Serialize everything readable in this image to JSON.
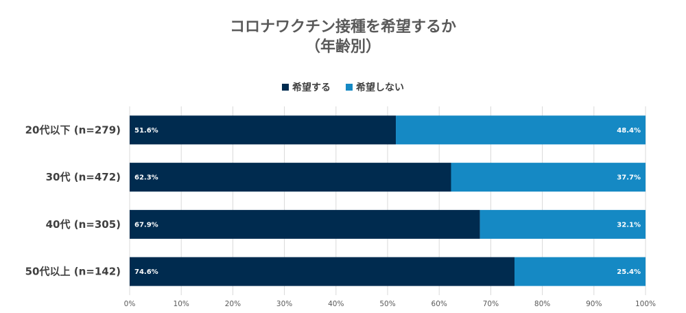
{
  "chart_data": {
    "type": "bar",
    "orientation": "horizontal",
    "stacked": true,
    "title": "コロナワクチン接種を希望するか",
    "subtitle": "（年齢別）",
    "categories": [
      "20代以下 (n=279)",
      "30代 (n=472)",
      "40代 (n=305)",
      "50代以上 (n=142)"
    ],
    "series": [
      {
        "name": "希望する",
        "color": "#002b4f",
        "values": [
          51.6,
          62.3,
          67.9,
          74.6
        ],
        "labels": [
          "51.6%",
          "62.3%",
          "67.9%",
          "74.6%"
        ]
      },
      {
        "name": "希望しない",
        "color": "#1589c4",
        "values": [
          48.4,
          37.7,
          32.1,
          25.4
        ],
        "labels": [
          "48.4%",
          "37.7%",
          "32.1%",
          "25.4%"
        ]
      }
    ],
    "xlim": [
      0,
      100
    ],
    "xticks": [
      "0%",
      "10%",
      "20%",
      "30%",
      "40%",
      "50%",
      "60%",
      "70%",
      "80%",
      "90%",
      "100%"
    ],
    "grid": "vertical",
    "legend": "top-center"
  }
}
